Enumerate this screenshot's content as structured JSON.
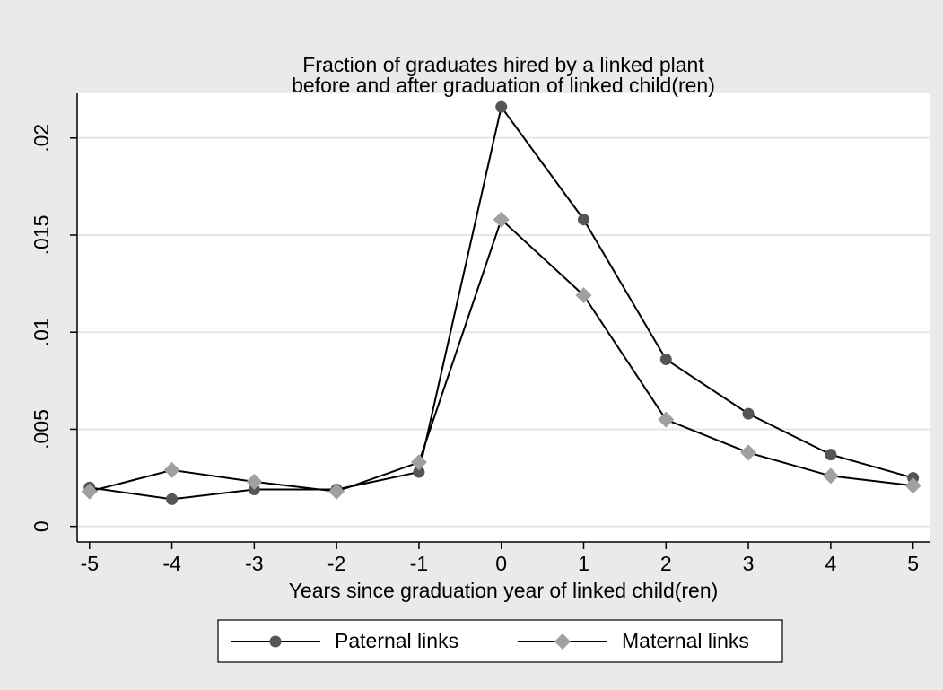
{
  "chart_data": {
    "type": "line",
    "title": [
      "Fraction of graduates hired by a linked plant",
      "before and after graduation of linked child(ren)"
    ],
    "xlabel": "Years since graduation year of linked child(ren)",
    "x": [
      -5,
      -4,
      -3,
      -2,
      -1,
      0,
      1,
      2,
      3,
      4,
      5
    ],
    "series": [
      {
        "name": "Paternal links",
        "color": "#555555",
        "marker": "circle",
        "values": [
          0.002,
          0.0014,
          0.0019,
          0.0019,
          0.0028,
          0.0216,
          0.0158,
          0.0086,
          0.0058,
          0.0037,
          0.0025
        ]
      },
      {
        "name": "Maternal links",
        "color": "#a0a0a0",
        "marker": "diamond",
        "values": [
          0.0018,
          0.0029,
          0.0023,
          0.0018,
          0.0033,
          0.0158,
          0.0119,
          0.0055,
          0.0038,
          0.0026,
          0.0021
        ]
      }
    ],
    "xlim": [
      -5.15,
      5.2
    ],
    "xticks": [
      -5,
      -4,
      -3,
      -2,
      -1,
      0,
      1,
      2,
      3,
      4,
      5
    ],
    "ylim": [
      -0.0008,
      0.0223
    ],
    "yticks": [
      {
        "value": 0,
        "label": "0"
      },
      {
        "value": 0.005,
        "label": ".005"
      },
      {
        "value": 0.01,
        "label": ".01"
      },
      {
        "value": 0.015,
        "label": ".015"
      },
      {
        "value": 0.02,
        "label": ".02"
      }
    ],
    "grid": true,
    "legend": "bottom"
  }
}
